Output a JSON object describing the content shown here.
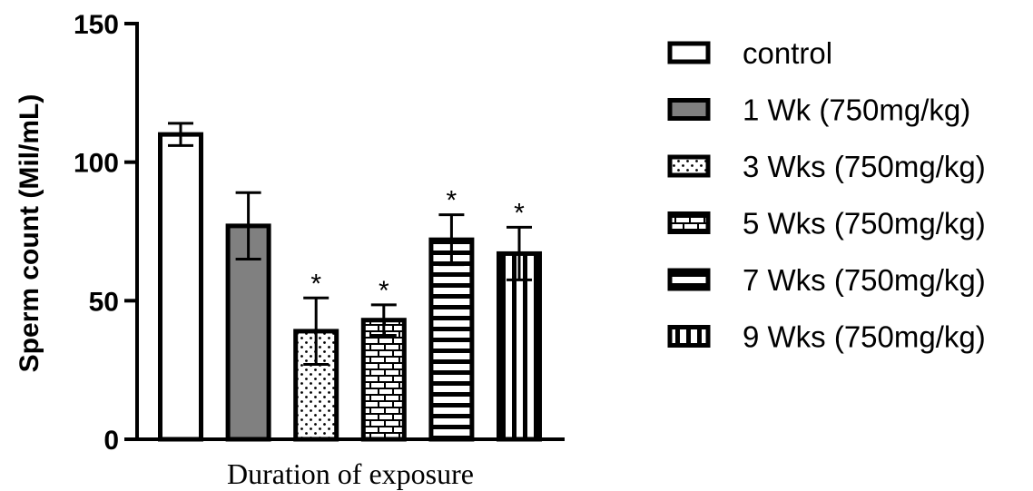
{
  "chart_data": {
    "type": "bar",
    "ylabel": "Sperm count (Mil/mL)",
    "xlabel": "Duration of exposure",
    "ylim": [
      0,
      150
    ],
    "yticks": [
      0,
      50,
      100,
      150
    ],
    "legend_position": "right",
    "series": [
      {
        "name": "control",
        "value": 110,
        "error": 4,
        "significant": false,
        "pattern": "plain"
      },
      {
        "name": "1 Wk (750mg/kg)",
        "value": 77,
        "error": 12,
        "significant": false,
        "pattern": "gray",
        "color": "#808080"
      },
      {
        "name": "3 Wks (750mg/kg)",
        "value": 39,
        "error": 12,
        "significant": true,
        "pattern": "dots"
      },
      {
        "name": "5 Wks (750mg/kg)",
        "value": 43,
        "error": 5.5,
        "significant": true,
        "pattern": "bricks"
      },
      {
        "name": "7 Wks (750mg/kg)",
        "value": 72,
        "error": 9,
        "significant": true,
        "pattern": "hstripes"
      },
      {
        "name": "9 Wks (750mg/kg)",
        "value": 67,
        "error": 9.5,
        "significant": true,
        "pattern": "vstripes"
      }
    ],
    "significance_marker": "*"
  }
}
